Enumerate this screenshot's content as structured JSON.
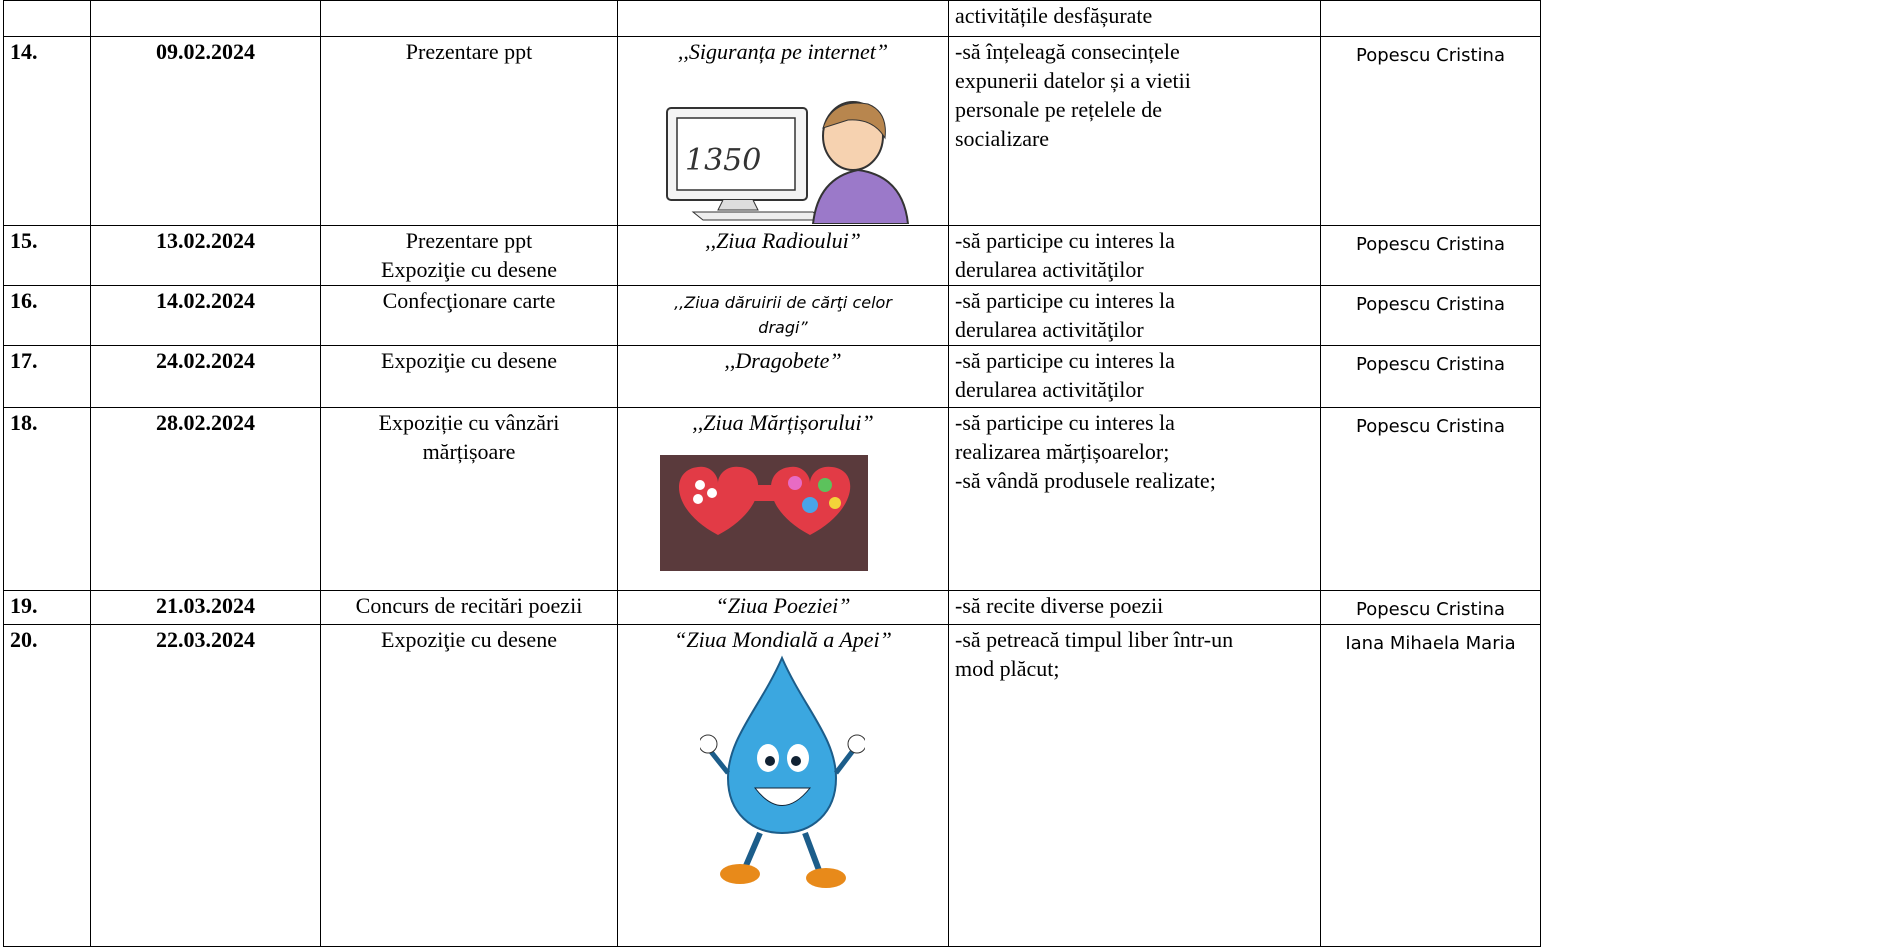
{
  "table": {
    "rows": [
      {
        "objectives": [
          "activitățile desfășurate"
        ]
      },
      {
        "number": "14.",
        "date": "09.02.2024",
        "activity": [
          "Prezentare ppt"
        ],
        "theme": [
          ",,Siguranța pe internet”"
        ],
        "objectives": [
          "-să înțeleagă consecințele",
          "expunerii datelor și a vietii",
          "personale pe rețelele de",
          "socializare"
        ],
        "responsible": "Popescu Cristina"
      },
      {
        "number": "15.",
        "date": "13.02.2024",
        "activity": [
          "Prezentare ppt",
          "Expoziţie cu desene"
        ],
        "theme": [
          ",,Ziua Radioului”"
        ],
        "objectives": [
          "-să participe cu interes la",
          "derularea activităţilor"
        ],
        "responsible": "Popescu Cristina"
      },
      {
        "number": "16.",
        "date": "14.02.2024",
        "activity": [
          "Confecţionare carte"
        ],
        "theme": [
          ",,Ziua dăruirii de cărţi celor",
          "dragi”"
        ],
        "objectives": [
          "-să participe cu interes la",
          "derularea activităţilor"
        ],
        "responsible": "Popescu Cristina"
      },
      {
        "number": "17.",
        "date": "24.02.2024",
        "activity": [
          "Expoziţie cu desene"
        ],
        "theme": [
          ",,Dragobete”"
        ],
        "objectives": [
          "-să participe cu interes la",
          "derularea activităţilor"
        ],
        "responsible": "Popescu Cristina"
      },
      {
        "number": "18.",
        "date": "28.02.2024",
        "activity": [
          "Expoziție cu vânzări",
          "mărțișoare"
        ],
        "theme": [
          ",,Ziua Mărțișorului”"
        ],
        "objectives": [
          "-să participe cu interes la",
          "realizarea mărțișoarelor;",
          "-să vândă produsele realizate;"
        ],
        "responsible": "Popescu Cristina"
      },
      {
        "number": "19.",
        "date": "21.03.2024",
        "activity": [
          "Concurs de recitări poezii"
        ],
        "theme": [
          "“Ziua Poeziei”"
        ],
        "objectives": [
          "-să recite diverse poezii"
        ],
        "responsible": "Popescu Cristina"
      },
      {
        "number": "20.",
        "date": "22.03.2024",
        "activity": [
          "Expoziţie cu desene"
        ],
        "theme": [
          "“Ziua Mondială a Apei”"
        ],
        "objectives": [
          "-să petreacă timpul liber într-un",
          "mod plăcut;"
        ],
        "responsible": "Iana Mihaela Maria"
      }
    ]
  }
}
